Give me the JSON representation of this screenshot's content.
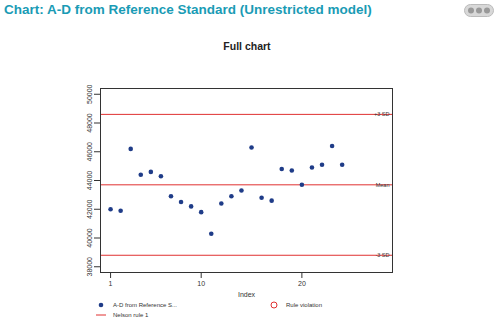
{
  "chart_data": {
    "type": "scatter",
    "title": "Chart: A-D from Reference Standard (Unrestricted model)",
    "subtitle": "Full chart",
    "x_label": "Index",
    "x": [
      1,
      2,
      3,
      4,
      5,
      6,
      7,
      8,
      9,
      10,
      11,
      12,
      13,
      14,
      15,
      16,
      17,
      18,
      19,
      20,
      21,
      22,
      23,
      24
    ],
    "series": [
      {
        "name": "A-D from Reference S...",
        "color": "#1f3c88",
        "marker": "circle",
        "values": [
          42000,
          41900,
          46200,
          44400,
          44600,
          44300,
          42900,
          42500,
          42200,
          41800,
          40300,
          42400,
          42900,
          43300,
          46300,
          42800,
          42600,
          44800,
          44700,
          43700,
          44900,
          45100,
          46400,
          45100
        ]
      }
    ],
    "violations": {
      "name": "Rule violation",
      "color": "#e03030",
      "marker": "open circle",
      "values": []
    },
    "limits": {
      "name": "Nelson rule 1",
      "color": "#e03030",
      "line_style": "solid",
      "lines": [
        {
          "value": 48600,
          "label": "+3 SD"
        },
        {
          "value": 43700,
          "label": "Mean"
        },
        {
          "value": 38800,
          "label": "-3 SD"
        }
      ]
    },
    "xlim": [
      0,
      29
    ],
    "xticks": [
      1,
      10,
      20
    ],
    "ylim": [
      37600,
      50400
    ],
    "yticks": [
      38000,
      40000,
      42000,
      44000,
      46000,
      48000,
      50000
    ],
    "grid": false,
    "legend": "bottom"
  }
}
